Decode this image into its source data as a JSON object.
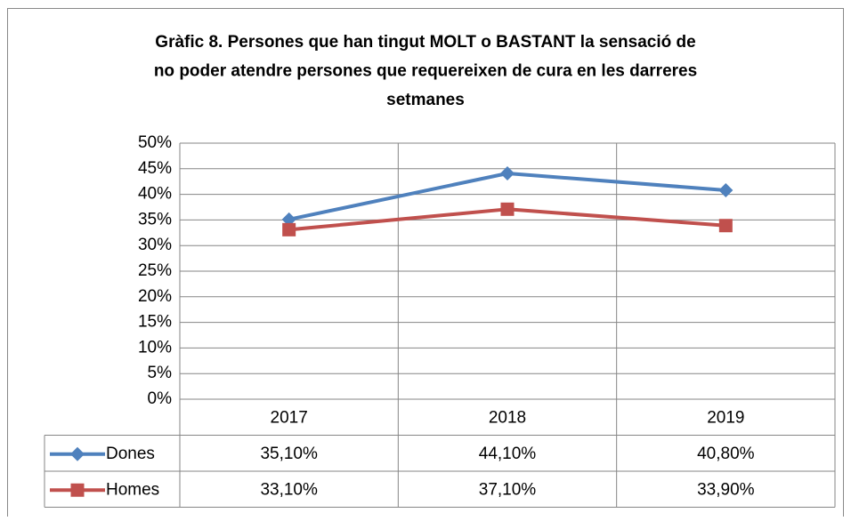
{
  "chart_data": {
    "type": "line",
    "title": [
      "Gràfic 8. Persones que han tingut MOLT o BASTANT la sensació de",
      "no poder atendre persones que requereixen de cura en les darreres",
      "setmanes"
    ],
    "categories": [
      "2017",
      "2018",
      "2019"
    ],
    "series": [
      {
        "name": "Dones",
        "color": "#4f81bd",
        "marker": "diamond",
        "values": [
          35.1,
          44.1,
          40.8
        ],
        "value_labels": [
          "35,10%",
          "44,10%",
          "40,80%"
        ]
      },
      {
        "name": "Homes",
        "color": "#c0504d",
        "marker": "square",
        "values": [
          33.1,
          37.1,
          33.9
        ],
        "value_labels": [
          "33,10%",
          "37,10%",
          "33,90%"
        ]
      }
    ],
    "ylim": [
      0,
      50
    ],
    "yticks": [
      {
        "value": 0,
        "label": "0%"
      },
      {
        "value": 5,
        "label": "5%"
      },
      {
        "value": 10,
        "label": "10%"
      },
      {
        "value": 15,
        "label": "15%"
      },
      {
        "value": 20,
        "label": "20%"
      },
      {
        "value": 25,
        "label": "25%"
      },
      {
        "value": 30,
        "label": "30%"
      },
      {
        "value": 35,
        "label": "35%"
      },
      {
        "value": 40,
        "label": "40%"
      },
      {
        "value": 45,
        "label": "45%"
      },
      {
        "value": 50,
        "label": "50%"
      }
    ],
    "grid": true
  }
}
